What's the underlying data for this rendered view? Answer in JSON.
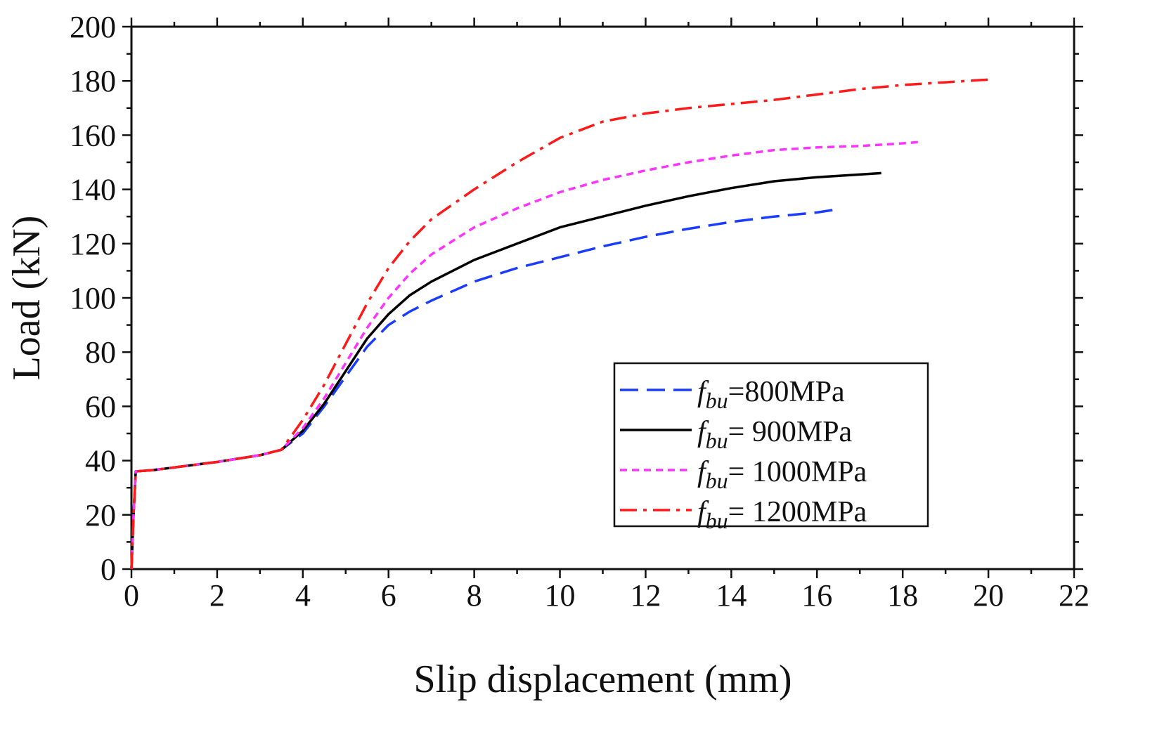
{
  "chart_data": {
    "type": "line",
    "title": "",
    "xlabel": "Slip displacement (mm)",
    "ylabel": "Load (kN)",
    "xlim": [
      0,
      22
    ],
    "ylim": [
      0,
      200
    ],
    "xticks": [
      0,
      2,
      4,
      6,
      8,
      10,
      12,
      14,
      16,
      18,
      20,
      22
    ],
    "yticks": [
      0,
      20,
      40,
      60,
      80,
      100,
      120,
      140,
      160,
      180,
      200
    ],
    "xtick_labels": [
      "0",
      "2",
      "4",
      "6",
      "8",
      "10",
      "12",
      "14",
      "16",
      "18",
      "20",
      "22"
    ],
    "ytick_labels": [
      "0",
      "20",
      "40",
      "60",
      "80",
      "100",
      "120",
      "140",
      "160",
      "180",
      "200"
    ],
    "grid": false,
    "legend_position": "lower-right",
    "series": [
      {
        "name": "f_bu =800MPa",
        "legend_symbol": "f",
        "legend_sub": "bu",
        "legend_value": "=800MPa",
        "color": "#1a3cff",
        "style": "dash",
        "x": [
          0,
          0.05,
          0.1,
          0.5,
          1.0,
          2.0,
          3.0,
          3.5,
          4.0,
          4.5,
          5.0,
          5.5,
          6.0,
          6.5,
          7.0,
          8.0,
          9.0,
          10.0,
          11.0,
          12.0,
          13.0,
          14.0,
          15.0,
          16.0,
          16.4
        ],
        "y": [
          0,
          20,
          36,
          36.5,
          37.5,
          39.5,
          42,
          44,
          50,
          60,
          71,
          82,
          90,
          95,
          99,
          106,
          111,
          115,
          119,
          122.5,
          125.5,
          128,
          130,
          131.5,
          132.5
        ]
      },
      {
        "name": "f_bu = 900MPa",
        "legend_symbol": "f",
        "legend_sub": "bu",
        "legend_value": "= 900MPa",
        "color": "#000000",
        "style": "solid",
        "x": [
          0,
          0.05,
          0.1,
          0.5,
          1.0,
          2.0,
          3.0,
          3.5,
          4.0,
          4.5,
          5.0,
          5.5,
          6.0,
          6.5,
          7.0,
          8.0,
          9.0,
          10.0,
          11.0,
          12.0,
          13.0,
          14.0,
          15.0,
          16.0,
          17.0,
          17.5
        ],
        "y": [
          0,
          20,
          36,
          36.5,
          37.5,
          39.5,
          42,
          44,
          51,
          61,
          73,
          85,
          94,
          101,
          106,
          114,
          120,
          126,
          130,
          134,
          137.5,
          140.5,
          143,
          144.5,
          145.5,
          146
        ]
      },
      {
        "name": "f_bu = 1000MPa",
        "legend_symbol": "f",
        "legend_sub": "bu",
        "legend_value": "= 1000MPa",
        "color": "#ff33ff",
        "style": "short-dash",
        "x": [
          0,
          0.05,
          0.1,
          0.5,
          1.0,
          2.0,
          3.0,
          3.5,
          4.0,
          4.5,
          5.0,
          5.5,
          6.0,
          6.5,
          7.0,
          8.0,
          9.0,
          10.0,
          11.0,
          12.0,
          13.0,
          14.0,
          15.0,
          16.0,
          17.0,
          18.0,
          18.4
        ],
        "y": [
          0,
          20,
          36,
          36.5,
          37.5,
          39.5,
          42,
          44,
          52,
          63,
          76,
          89,
          100,
          109,
          116,
          126,
          133,
          139,
          143.5,
          147,
          150,
          152.5,
          154.5,
          155.5,
          156,
          157,
          157.5
        ]
      },
      {
        "name": "f_bu = 1200MPa",
        "legend_symbol": "f",
        "legend_sub": "bu",
        "legend_value": "= 1200MPa",
        "color": "#ff1a1a",
        "style": "dash-dot",
        "x": [
          0,
          0.05,
          0.1,
          0.5,
          1.0,
          2.0,
          3.0,
          3.5,
          4.0,
          4.5,
          5.0,
          5.5,
          6.0,
          6.5,
          7.0,
          8.0,
          9.0,
          10.0,
          11.0,
          12.0,
          13.0,
          14.0,
          15.0,
          16.0,
          17.0,
          18.0,
          19.0,
          20.0,
          20.1
        ],
        "y": [
          0,
          20,
          36,
          36.5,
          37.5,
          39.5,
          42,
          44,
          55,
          68,
          83,
          98,
          111,
          121,
          129,
          140,
          150,
          159,
          165,
          168,
          170,
          171.5,
          173,
          175,
          177,
          178.5,
          179.5,
          180.5,
          181
        ]
      }
    ]
  }
}
